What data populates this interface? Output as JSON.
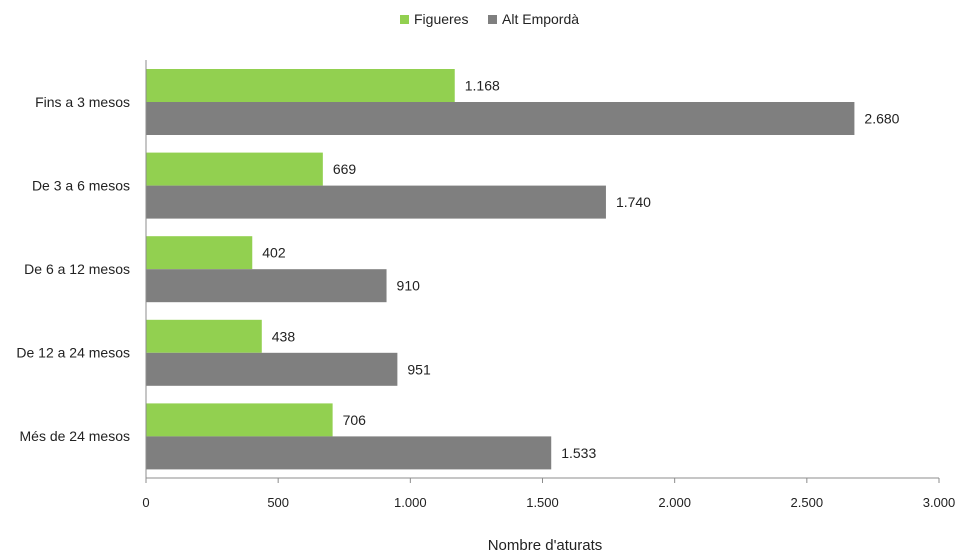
{
  "chart_data": {
    "type": "bar",
    "orientation": "horizontal",
    "categories": [
      "Fins a 3 mesos",
      "De 3 a 6 mesos",
      "De 6 a 12 mesos",
      "De 12 a 24 mesos",
      "Més de 24 mesos"
    ],
    "series": [
      {
        "name": "Figueres",
        "color": "#92d050",
        "values": [
          1168,
          669,
          402,
          438,
          706
        ],
        "labels": [
          "1.168",
          "669",
          "402",
          "438",
          "706"
        ]
      },
      {
        "name": "Alt Empordà",
        "color": "#7f7f7f",
        "values": [
          2680,
          1740,
          910,
          951,
          1533
        ],
        "labels": [
          "2.680",
          "1.740",
          "910",
          "951",
          "1.533"
        ]
      }
    ],
    "xlabel": "Nombre d'aturats",
    "xlim": [
      0,
      3000
    ],
    "xticks": [
      0,
      500,
      1000,
      1500,
      2000,
      2500,
      3000
    ],
    "xtick_labels": [
      "0",
      "500",
      "1.000",
      "1.500",
      "2.000",
      "2.500",
      "3.000"
    ],
    "grid": false,
    "legend_position": "top-center"
  }
}
